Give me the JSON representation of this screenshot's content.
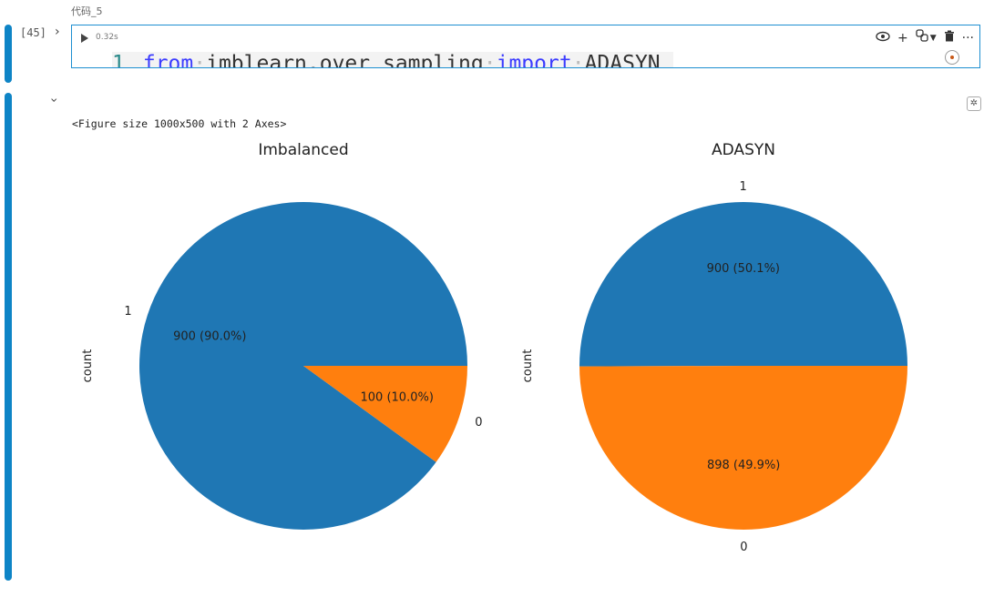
{
  "cell": {
    "label": "代码_5",
    "exec_count": "[45]",
    "exec_time": "0.32s",
    "code": {
      "line_number": "1",
      "kw_from": "from",
      "module": "imblearn.over_sampling",
      "kw_import": "import",
      "name": "ADASYN"
    }
  },
  "toolbar": {
    "icons": [
      "eye-icon",
      "plus-icon",
      "python-icon",
      "dropdown-icon",
      "trash-icon",
      "more-icon"
    ]
  },
  "output": {
    "figure_text": "<Figure size 1000x500 with 2 Axes>"
  },
  "chart_data": [
    {
      "type": "pie",
      "title": "Imbalanced",
      "ylabel": "count",
      "categories": [
        "1",
        "0"
      ],
      "values": [
        900,
        100
      ],
      "labels": [
        "900 (90.0%)",
        "100 (10.0%)"
      ],
      "colors": [
        "#1f77b4",
        "#ff7f0e"
      ]
    },
    {
      "type": "pie",
      "title": "ADASYN",
      "ylabel": "count",
      "categories": [
        "1",
        "0"
      ],
      "values": [
        900,
        898
      ],
      "labels": [
        "900 (50.1%)",
        "898 (49.9%)"
      ],
      "colors": [
        "#1f77b4",
        "#ff7f0e"
      ]
    }
  ]
}
